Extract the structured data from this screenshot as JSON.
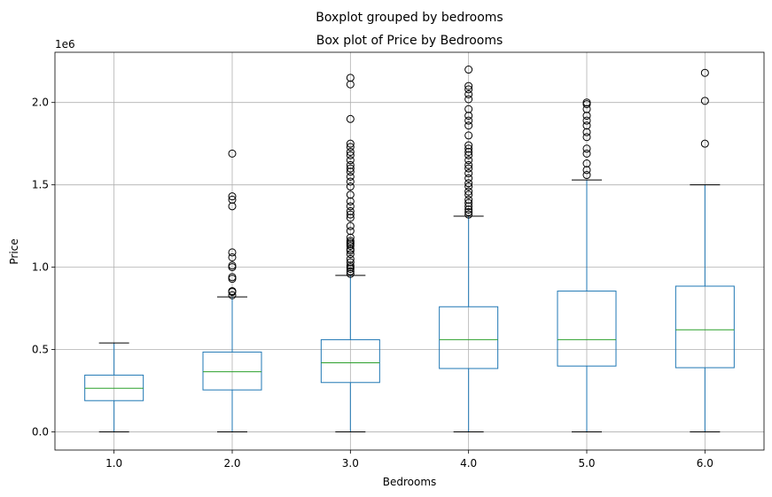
{
  "figure": {
    "suptitle": "Boxplot grouped by bedrooms",
    "background": "#ffffff"
  },
  "chart_data": {
    "type": "boxplot",
    "title": "Box plot of Price by Bedrooms",
    "xlabel": "Bedrooms",
    "ylabel": "Price",
    "y_offset_label": "1e6",
    "ylim": [
      -110000,
      2305000
    ],
    "y_ticks": [
      {
        "value": 0,
        "label": "0.0"
      },
      {
        "value": 500000,
        "label": "0.5"
      },
      {
        "value": 1000000,
        "label": "1.0"
      },
      {
        "value": 1500000,
        "label": "1.5"
      },
      {
        "value": 2000000,
        "label": "2.0"
      }
    ],
    "grid": true,
    "colors": {
      "box": "#1f77b4",
      "median": "#2ca02c",
      "whisker": "#1f77b4",
      "cap": "#000000",
      "flier": "#000000",
      "grid": "#b0b0b0"
    },
    "categories": [
      "1.0",
      "2.0",
      "3.0",
      "4.0",
      "5.0",
      "6.0"
    ],
    "boxes": [
      {
        "category": "1.0",
        "whislo": 0,
        "q1": 190000,
        "median": 265000,
        "q3": 345000,
        "whishi": 540000,
        "fliers": []
      },
      {
        "category": "2.0",
        "whislo": 0,
        "q1": 255000,
        "median": 365000,
        "q3": 485000,
        "whishi": 820000,
        "fliers": [
          830000,
          850000,
          855000,
          930000,
          940000,
          1000000,
          1010000,
          1060000,
          1090000,
          1370000,
          1410000,
          1430000,
          1690000
        ]
      },
      {
        "category": "3.0",
        "whislo": 0,
        "q1": 300000,
        "median": 420000,
        "q3": 560000,
        "whishi": 950000,
        "fliers": [
          960000,
          975000,
          990000,
          1000000,
          1010000,
          1030000,
          1050000,
          1080000,
          1100000,
          1110000,
          1130000,
          1140000,
          1150000,
          1160000,
          1180000,
          1220000,
          1250000,
          1300000,
          1320000,
          1340000,
          1370000,
          1400000,
          1440000,
          1490000,
          1520000,
          1550000,
          1580000,
          1600000,
          1620000,
          1650000,
          1680000,
          1700000,
          1730000,
          1750000,
          1900000,
          2110000,
          2150000
        ]
      },
      {
        "category": "4.0",
        "whislo": 0,
        "q1": 385000,
        "median": 560000,
        "q3": 760000,
        "whishi": 1310000,
        "fliers": [
          1320000,
          1335000,
          1350000,
          1370000,
          1390000,
          1410000,
          1440000,
          1460000,
          1490000,
          1510000,
          1540000,
          1570000,
          1600000,
          1620000,
          1650000,
          1680000,
          1700000,
          1720000,
          1740000,
          1800000,
          1860000,
          1890000,
          1920000,
          1960000,
          2020000,
          2050000,
          2080000,
          2100000,
          2200000
        ]
      },
      {
        "category": "5.0",
        "whislo": 0,
        "q1": 400000,
        "median": 560000,
        "q3": 855000,
        "whishi": 1530000,
        "fliers": [
          1560000,
          1590000,
          1630000,
          1690000,
          1720000,
          1790000,
          1820000,
          1860000,
          1890000,
          1920000,
          1960000,
          1990000,
          2000000
        ]
      },
      {
        "category": "6.0",
        "whislo": 0,
        "q1": 390000,
        "median": 620000,
        "q3": 885000,
        "whishi": 1500000,
        "fliers": [
          1750000,
          2010000,
          2180000
        ]
      }
    ]
  }
}
